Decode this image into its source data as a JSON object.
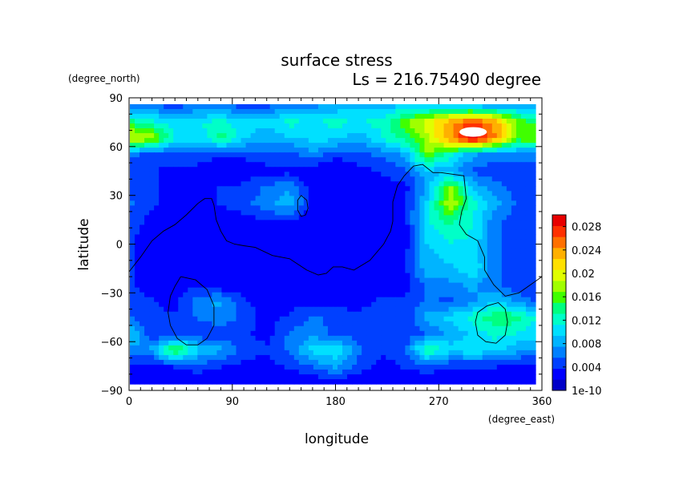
{
  "chart_data": {
    "type": "heatmap",
    "title": "surface stress",
    "subtitle": "Ls = 216.75490 degree",
    "xlabel": "longitude",
    "ylabel": "latitude",
    "x_units": "(degree_east)",
    "y_units": "(degree_north)",
    "xlim": [
      0,
      360
    ],
    "ylim": [
      -90,
      90
    ],
    "x_ticks": [
      "0",
      "90",
      "180",
      "270",
      "360"
    ],
    "y_ticks": [
      "90",
      "60",
      "30",
      "0",
      "−30",
      "−60",
      "−90"
    ],
    "x_tick_values": [
      0,
      90,
      180,
      270,
      360
    ],
    "y_tick_values": [
      90,
      60,
      30,
      0,
      -30,
      -60,
      -90
    ],
    "colorbar": {
      "min": 0,
      "max": 0.03,
      "labels": [
        "0.028",
        "0.024",
        "0.02",
        "0.016",
        "0.012",
        "0.008",
        "0.004",
        "1e-10"
      ],
      "label_values": [
        0.028,
        0.024,
        0.02,
        0.016,
        0.012,
        0.008,
        0.004,
        0
      ],
      "colors": [
        "#0000c8",
        "#0000ff",
        "#0040ff",
        "#0080ff",
        "#00b4ff",
        "#00e0ff",
        "#00ffc8",
        "#00ff80",
        "#40ff00",
        "#a0ff00",
        "#e0ff00",
        "#ffe000",
        "#ffb000",
        "#ff7000",
        "#ff3000",
        "#e80000"
      ]
    },
    "lon": [
      0,
      20,
      40,
      60,
      80,
      100,
      120,
      140,
      160,
      180,
      200,
      220,
      240,
      260,
      280,
      300,
      320,
      340,
      360
    ],
    "lat": [
      85,
      75,
      65,
      55,
      45,
      35,
      25,
      15,
      5,
      -5,
      -15,
      -25,
      -35,
      -45,
      -55,
      -65,
      -75,
      -85
    ],
    "values": [
      [
        0.006,
        0.006,
        0.005,
        0.006,
        0.006,
        0.005,
        0.005,
        0.007,
        0.007,
        0.008,
        0.009,
        0.008,
        0.01,
        0.009,
        0.01,
        0.009,
        0.008,
        0.008,
        0.007
      ],
      [
        0.014,
        0.012,
        0.01,
        0.011,
        0.012,
        0.01,
        0.01,
        0.012,
        0.011,
        0.012,
        0.011,
        0.012,
        0.016,
        0.02,
        0.024,
        0.027,
        0.024,
        0.016,
        0.014
      ],
      [
        0.02,
        0.018,
        0.011,
        0.01,
        0.014,
        0.01,
        0.008,
        0.009,
        0.01,
        0.01,
        0.008,
        0.011,
        0.014,
        0.018,
        0.024,
        0.03,
        0.024,
        0.016,
        0.018
      ],
      [
        0.006,
        0.005,
        0.005,
        0.005,
        0.004,
        0.004,
        0.005,
        0.005,
        0.007,
        0.004,
        0.005,
        0.006,
        0.008,
        0.017,
        0.012,
        0.008,
        0.006,
        0.006,
        0.006
      ],
      [
        0.004,
        0.004,
        0.003,
        0.003,
        0.002,
        0.003,
        0.003,
        0.003,
        0.002,
        0.002,
        0.003,
        0.004,
        0.005,
        0.009,
        0.008,
        0.005,
        0.005,
        0.005,
        0.005
      ],
      [
        0.005,
        0.004,
        0.003,
        0.003,
        0.004,
        0.004,
        0.006,
        0.007,
        0.003,
        0.002,
        0.002,
        0.003,
        0.003,
        0.008,
        0.017,
        0.009,
        0.006,
        0.005,
        0.005
      ],
      [
        0.006,
        0.004,
        0.003,
        0.002,
        0.004,
        0.005,
        0.007,
        0.009,
        0.003,
        0.002,
        0.002,
        0.003,
        0.003,
        0.01,
        0.019,
        0.012,
        0.008,
        0.005,
        0.006
      ],
      [
        0.005,
        0.003,
        0.002,
        0.002,
        0.002,
        0.003,
        0.004,
        0.004,
        0.002,
        0.002,
        0.002,
        0.002,
        0.003,
        0.011,
        0.014,
        0.011,
        0.006,
        0.005,
        0.005
      ],
      [
        0.004,
        0.003,
        0.002,
        0.002,
        0.002,
        0.002,
        0.002,
        0.002,
        0.002,
        0.002,
        0.002,
        0.002,
        0.002,
        0.01,
        0.012,
        0.011,
        0.006,
        0.004,
        0.004
      ],
      [
        0.004,
        0.003,
        0.002,
        0.002,
        0.002,
        0.002,
        0.002,
        0.002,
        0.002,
        0.002,
        0.002,
        0.002,
        0.003,
        0.009,
        0.01,
        0.01,
        0.006,
        0.004,
        0.004
      ],
      [
        0.004,
        0.003,
        0.003,
        0.002,
        0.002,
        0.002,
        0.002,
        0.002,
        0.002,
        0.002,
        0.002,
        0.002,
        0.003,
        0.009,
        0.009,
        0.011,
        0.006,
        0.004,
        0.004
      ],
      [
        0.004,
        0.003,
        0.003,
        0.003,
        0.002,
        0.002,
        0.002,
        0.003,
        0.002,
        0.002,
        0.002,
        0.003,
        0.003,
        0.006,
        0.007,
        0.008,
        0.006,
        0.004,
        0.004
      ],
      [
        0.004,
        0.004,
        0.003,
        0.007,
        0.008,
        0.004,
        0.003,
        0.003,
        0.003,
        0.003,
        0.003,
        0.004,
        0.004,
        0.006,
        0.005,
        0.007,
        0.009,
        0.007,
        0.005
      ],
      [
        0.006,
        0.004,
        0.004,
        0.006,
        0.007,
        0.005,
        0.003,
        0.004,
        0.006,
        0.005,
        0.004,
        0.005,
        0.004,
        0.008,
        0.01,
        0.012,
        0.015,
        0.014,
        0.01
      ],
      [
        0.01,
        0.004,
        0.004,
        0.004,
        0.004,
        0.004,
        0.003,
        0.006,
        0.007,
        0.005,
        0.005,
        0.005,
        0.004,
        0.006,
        0.008,
        0.01,
        0.012,
        0.011,
        0.01
      ],
      [
        0.007,
        0.008,
        0.016,
        0.01,
        0.008,
        0.005,
        0.004,
        0.006,
        0.01,
        0.011,
        0.006,
        0.004,
        0.005,
        0.014,
        0.01,
        0.011,
        0.01,
        0.008,
        0.007
      ],
      [
        0.003,
        0.003,
        0.004,
        0.005,
        0.004,
        0.003,
        0.003,
        0.004,
        0.006,
        0.008,
        0.005,
        0.003,
        0.004,
        0.005,
        0.004,
        0.004,
        0.004,
        0.003,
        0.003
      ],
      [
        0.002,
        0.002,
        0.002,
        0.002,
        0.002,
        0.002,
        0.002,
        0.002,
        0.002,
        0.003,
        0.002,
        0.002,
        0.002,
        0.002,
        0.002,
        0.002,
        0.002,
        0.002,
        0.002
      ]
    ],
    "max_region": {
      "lon": 300,
      "lat": 69
    },
    "coastline": [
      {
        "name": "continent-boundary",
        "points": [
          [
            0,
            -17
          ],
          [
            10,
            -8
          ],
          [
            20,
            2
          ],
          [
            30,
            8
          ],
          [
            40,
            12
          ],
          [
            50,
            18
          ],
          [
            60,
            25
          ],
          [
            66,
            28
          ],
          [
            72,
            28
          ],
          [
            74,
            24
          ],
          [
            76,
            15
          ],
          [
            80,
            8
          ],
          [
            85,
            2
          ],
          [
            92,
            0
          ],
          [
            100,
            -1
          ],
          [
            110,
            -2
          ],
          [
            125,
            -7
          ],
          [
            140,
            -9
          ],
          [
            155,
            -16
          ],
          [
            165,
            -19
          ],
          [
            172,
            -18
          ],
          [
            178,
            -14
          ],
          [
            186,
            -14
          ],
          [
            196,
            -16
          ],
          [
            210,
            -10
          ],
          [
            222,
            0
          ],
          [
            228,
            8
          ],
          [
            230,
            14
          ],
          [
            230,
            26
          ],
          [
            234,
            36
          ],
          [
            240,
            42
          ],
          [
            248,
            48
          ],
          [
            256,
            49
          ],
          [
            265,
            44
          ],
          [
            272,
            44
          ],
          [
            282,
            43
          ],
          [
            292,
            42
          ],
          [
            294,
            28
          ],
          [
            290,
            20
          ],
          [
            288,
            12
          ],
          [
            294,
            6
          ],
          [
            304,
            2
          ],
          [
            310,
            -8
          ],
          [
            310,
            -16
          ],
          [
            318,
            -25
          ],
          [
            328,
            -32
          ],
          [
            340,
            -30
          ],
          [
            350,
            -25
          ],
          [
            360,
            -20
          ]
        ]
      },
      {
        "name": "crater-left",
        "points": [
          [
            45,
            -20
          ],
          [
            58,
            -22
          ],
          [
            68,
            -28
          ],
          [
            74,
            -38
          ],
          [
            74,
            -50
          ],
          [
            68,
            -58
          ],
          [
            60,
            -62
          ],
          [
            50,
            -62
          ],
          [
            42,
            -58
          ],
          [
            36,
            -50
          ],
          [
            34,
            -42
          ],
          [
            36,
            -32
          ],
          [
            40,
            -26
          ],
          [
            45,
            -20
          ]
        ]
      },
      {
        "name": "crater-right",
        "points": [
          [
            312,
            -38
          ],
          [
            322,
            -36
          ],
          [
            328,
            -40
          ],
          [
            330,
            -48
          ],
          [
            328,
            -56
          ],
          [
            320,
            -61
          ],
          [
            311,
            -60
          ],
          [
            304,
            -56
          ],
          [
            302,
            -48
          ],
          [
            304,
            -42
          ],
          [
            312,
            -38
          ]
        ]
      },
      {
        "name": "small-loop",
        "points": [
          [
            150,
            30
          ],
          [
            155,
            27
          ],
          [
            156,
            22
          ],
          [
            154,
            18
          ],
          [
            150,
            17
          ],
          [
            147,
            21
          ],
          [
            147,
            27
          ],
          [
            150,
            30
          ]
        ]
      }
    ]
  }
}
